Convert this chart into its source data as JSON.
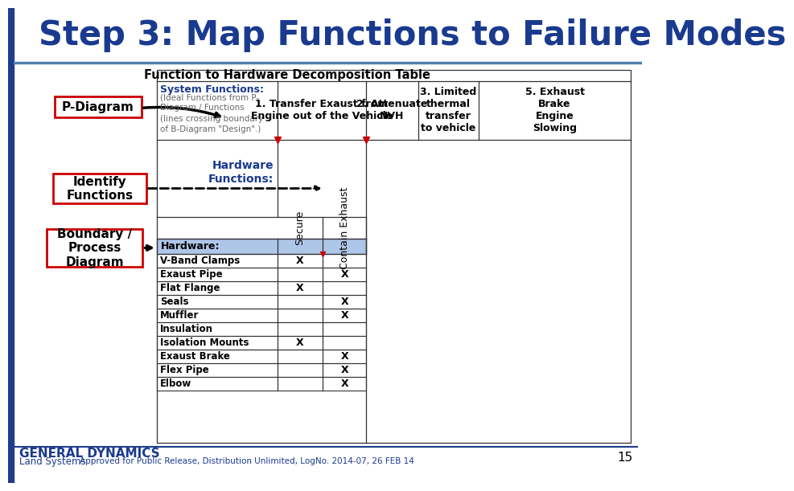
{
  "title": "Step 3: Map Functions to Failure Modes",
  "title_color": "#1a3a8f",
  "title_fontsize": 30,
  "bg_color": "#ffffff",
  "left_bar_color": "#1f3d8c",
  "separator_color": "#5080b0",
  "table_title": "Function to Hardware Decomposition Table",
  "system_functions_label": "System Functions:",
  "system_functions_sub": "(Ideal Functions from P-\nDiagram / Functions\n(lines crossing boundary\nof B-Diagram \"Design\".)",
  "col1_text": "1. Transfer Exaust from\nEngine out of the Vehicle",
  "col2_text": "2. Attenuate\nNVH",
  "col3_text": "3. Limited\nthermal\ntransfer\nto vehicle",
  "col4_text": "5. Exhaust\nBrake\nEngine\nSlowing",
  "hardware_functions_label": "Hardware\nFunctions:",
  "sub_col1": "Secure",
  "sub_col2": "Contain Exhaust",
  "hardware_header": "Hardware:",
  "rows": [
    {
      "name": "V-Band Clamps",
      "c1": "X",
      "c2": ""
    },
    {
      "name": "Exaust Pipe",
      "c1": "",
      "c2": "X"
    },
    {
      "name": "Flat Flange",
      "c1": "X",
      "c2": ""
    },
    {
      "name": "Seals",
      "c1": "",
      "c2": "X"
    },
    {
      "name": "Muffler",
      "c1": "",
      "c2": "X"
    },
    {
      "name": "Insulation",
      "c1": "",
      "c2": ""
    },
    {
      "name": "Isolation Mounts",
      "c1": "X",
      "c2": ""
    },
    {
      "name": "Exaust Brake",
      "c1": "",
      "c2": "X"
    },
    {
      "name": "Flex Pipe",
      "c1": "",
      "c2": "X"
    },
    {
      "name": "Elbow",
      "c1": "",
      "c2": "X"
    }
  ],
  "p_diagram_label": "P-Diagram",
  "identify_label": "Identify\nFunctions",
  "boundary_label": "Boundary /\nProcess\nDiagram",
  "blue_header_color": "#aec6e8",
  "dark_blue_text": "#1a3a8f",
  "footer_company": "GENERAL DYNAMICS",
  "footer_sub": "Land Systems",
  "footer_approved": "Approved for Public Release, Distribution Unlimited, LogNo. 2014-07, 26 FEB 14",
  "footer_page": "15",
  "red_marker_color": "#cc0000",
  "box_edge_color": "#cc0000"
}
